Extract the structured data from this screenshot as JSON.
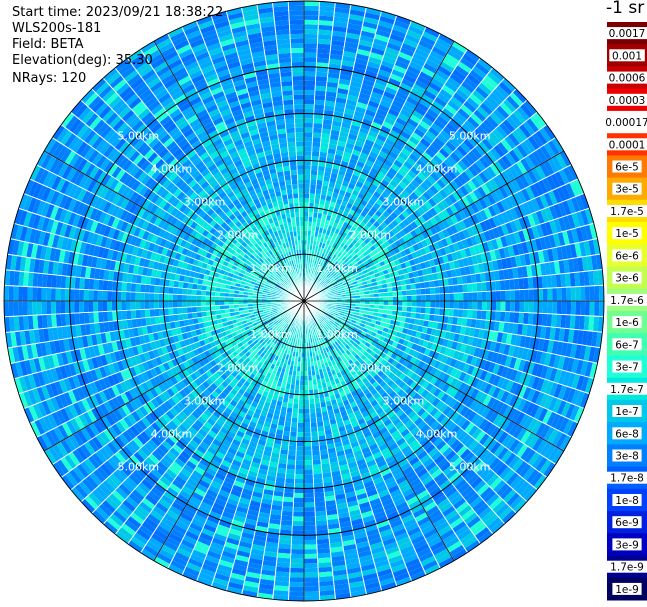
{
  "info": {
    "start_time": "Start time: 2023/09/21 18:38:22",
    "instrument": "WLS200s-181",
    "field": "Field: BETA",
    "elevation": "Elevation(deg): 35.30",
    "nrays": "NRays: 120"
  },
  "chart_data": {
    "type": "heatmap",
    "projection": "polar PPI",
    "field": "BETA",
    "nrays": 120,
    "range_rings_km": [
      1,
      2,
      3,
      4,
      5
    ],
    "ring_labels": [
      "1.00km",
      "2.00km",
      "3.00km",
      "4.00km",
      "5.00km"
    ],
    "max_range_km": 6.4,
    "azimuth_lines_deg": [
      0,
      30,
      60,
      90,
      120,
      150,
      180,
      210,
      240,
      270,
      300,
      330
    ],
    "colorbar": {
      "title": "-1 sr",
      "labels": [
        "0.0017",
        "0.001",
        "0.0006",
        "0.0003",
        "0.00017",
        "0.0001",
        "6e-5",
        "3e-5",
        "1.7e-5",
        "1e-5",
        "6e-6",
        "3e-6",
        "1.7e-6",
        "1e-6",
        "6e-7",
        "3e-7",
        "1.7e-7",
        "1e-7",
        "6e-8",
        "3e-8",
        "1.7e-8",
        "1e-8",
        "6e-9",
        "3e-9",
        "1.7e-9",
        "1e-9"
      ],
      "colors": [
        "#7a0000",
        "#a00000",
        "#c80000",
        "#ee0000",
        "#ffffff",
        "#ff3300",
        "#ff7a00",
        "#ffaa00",
        "#ffdd00",
        "#ffff00",
        "#e8ff30",
        "#c4ff50",
        "#a0ff80",
        "#70ff90",
        "#40ffb0",
        "#20ffd8",
        "#00e8e0",
        "#00c8e8",
        "#00aaff",
        "#0080ff",
        "#0060ff",
        "#0040ff",
        "#0020e0",
        "#0000c0",
        "#000090",
        "#000060"
      ]
    }
  }
}
